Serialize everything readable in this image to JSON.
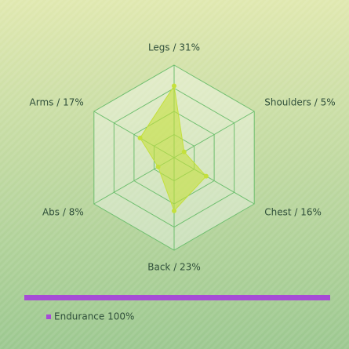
{
  "chart_data": {
    "type": "radar",
    "categories": [
      "Legs / 31%",
      "Shoulders / 5%",
      "Chest / 16%",
      "Back / 23%",
      "Abs / 8%",
      "Arms / 17%"
    ],
    "series": [
      {
        "name": "Endurance 100%",
        "color": "#a64bd6",
        "fill": "#c4e03c",
        "values": [
          31,
          5,
          16,
          23,
          8,
          17
        ]
      }
    ],
    "rlim": [
      0,
      40
    ],
    "rticks": [
      10,
      20,
      30,
      40
    ],
    "grid": true
  }
}
